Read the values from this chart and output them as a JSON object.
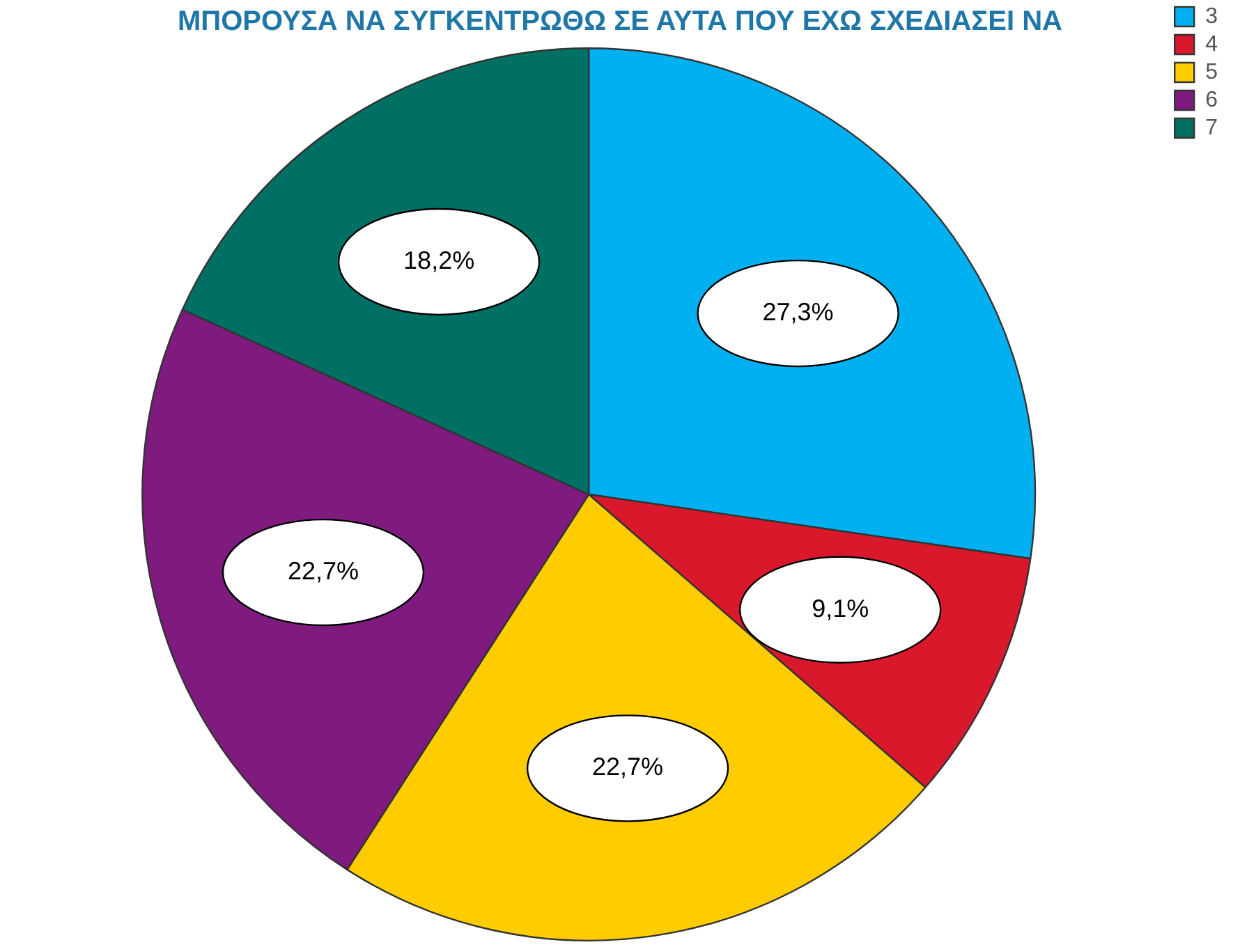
{
  "chart_data": {
    "type": "pie",
    "title": "ΜΠΟΡΟΥΣΑ ΝΑ ΣΥΓΚΕΝΤΡΩΘΩ ΣΕ ΑΥΤΑ ΠΟΥ ΕΧΩ ΣΧΕΔΙΑΣΕΙ ΝΑ",
    "categories": [
      "3",
      "4",
      "5",
      "6",
      "7"
    ],
    "values": [
      27.3,
      9.1,
      22.7,
      22.7,
      18.2
    ],
    "colors": [
      "#00b0f0",
      "#d9192b",
      "#ffcc00",
      "#7f1b7f",
      "#007064"
    ],
    "value_labels": [
      "27,3%",
      "9,1%",
      "22,7%",
      "22,7%",
      "18,2%"
    ],
    "legend": "top right"
  }
}
